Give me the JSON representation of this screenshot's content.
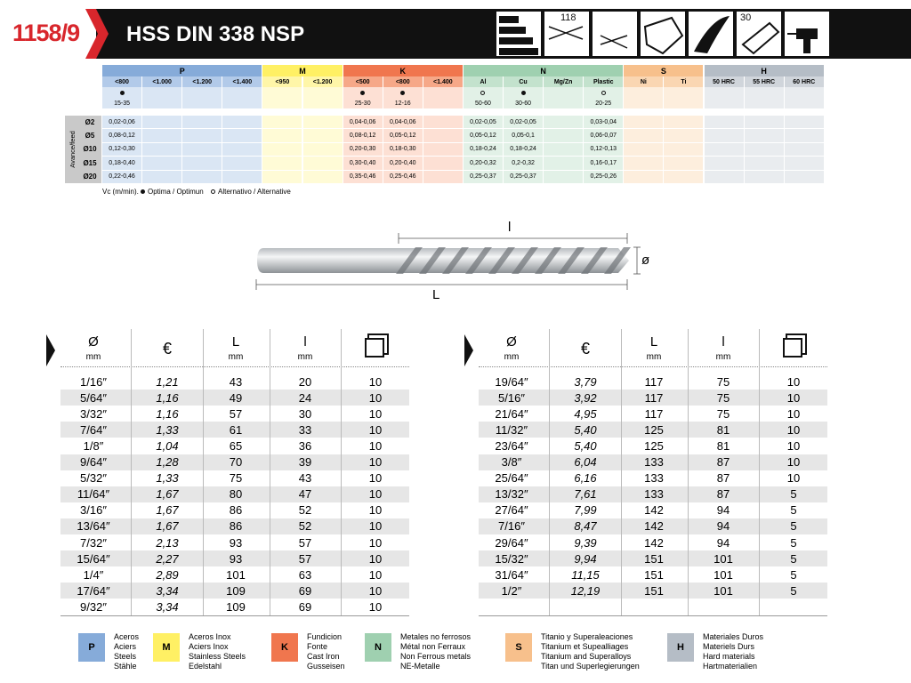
{
  "header": {
    "code": "1158/9",
    "title": "HSS DIN 338 NSP",
    "icon_labels": [
      "118",
      "30"
    ]
  },
  "materials": {
    "groups": [
      {
        "letter": "P",
        "color": "#86abd9",
        "sub": "#b2cae9",
        "light": "#dae6f4",
        "columns": [
          "<800",
          "<1.000",
          "<1.200",
          "<1.400"
        ]
      },
      {
        "letter": "M",
        "color": "#fff064",
        "sub": "#fff6a8",
        "light": "#fffbd6",
        "columns": [
          "<950",
          "<1.200"
        ]
      },
      {
        "letter": "K",
        "color": "#f0764e",
        "sub": "#f6a888",
        "light": "#fde0d4",
        "columns": [
          "<500",
          "<800",
          "<1.400"
        ]
      },
      {
        "letter": "N",
        "color": "#9fd0b0",
        "sub": "#c3e2cd",
        "light": "#e2f1e7",
        "columns": [
          "Al",
          "Cu",
          "Mg/Zn",
          "Plastic"
        ]
      },
      {
        "letter": "S",
        "color": "#f7c08c",
        "sub": "#fad6b2",
        "light": "#fdeedd",
        "columns": [
          "Ni",
          "Ti"
        ]
      },
      {
        "letter": "H",
        "color": "#b5bdc6",
        "sub": "#d0d5db",
        "light": "#e9ecef",
        "columns": [
          "50 HRC",
          "55 HRC",
          "60 HRC"
        ]
      }
    ],
    "speed": [
      {
        "value": "15-35",
        "mark": "optimal"
      },
      null,
      null,
      null,
      null,
      null,
      {
        "value": "25-30",
        "mark": "optimal"
      },
      {
        "value": "12-16",
        "mark": "optimal"
      },
      null,
      {
        "value": "50-60",
        "mark": "alternative"
      },
      {
        "value": "30-60",
        "mark": "optimal"
      },
      null,
      {
        "value": "20-25",
        "mark": "alternative"
      },
      null,
      null,
      null,
      null,
      null
    ],
    "feed": {
      "label": "Avance/feed",
      "rows": [
        {
          "size": "Ø2",
          "values": [
            "0,02-0,06",
            null,
            null,
            null,
            null,
            null,
            "0,04-0,06",
            "0,04-0,06",
            null,
            "0,02-0,05",
            "0,02-0,05",
            null,
            "0,03-0,04",
            null,
            null,
            null,
            null,
            null
          ]
        },
        {
          "size": "Ø5",
          "values": [
            "0,08-0,12",
            null,
            null,
            null,
            null,
            null,
            "0,08-0,12",
            "0,05-0,12",
            null,
            "0,05-0,12",
            "0,05-0,1",
            null,
            "0,06-0,07",
            null,
            null,
            null,
            null,
            null
          ]
        },
        {
          "size": "Ø10",
          "values": [
            "0,12-0,30",
            null,
            null,
            null,
            null,
            null,
            "0,20-0,30",
            "0,18-0,30",
            null,
            "0,18-0,24",
            "0,18-0,24",
            null,
            "0,12-0,13",
            null,
            null,
            null,
            null,
            null
          ]
        },
        {
          "size": "Ø15",
          "values": [
            "0,18-0,40",
            null,
            null,
            null,
            null,
            null,
            "0,30-0,40",
            "0,20-0,40",
            null,
            "0,20-0,32",
            "0,2-0,32",
            null,
            "0,16-0,17",
            null,
            null,
            null,
            null,
            null
          ]
        },
        {
          "size": "Ø20",
          "values": [
            "0,22-0,46",
            null,
            null,
            null,
            null,
            null,
            "0,35-0,46",
            "0,25-0,46",
            null,
            "0,25-0,37",
            "0,25-0,37",
            null,
            "0,25-0,26",
            null,
            null,
            null,
            null,
            null
          ]
        }
      ]
    },
    "legend": {
      "unit": "Vc (m/min).",
      "optimal": "Optima / Optimun",
      "alternative": "Alternativo / Alternative"
    }
  },
  "drawing": {
    "flute_length": "l",
    "diameter": "ø",
    "total_length": "L"
  },
  "products": {
    "headers": [
      {
        "symbol": "Ø",
        "unit": "mm"
      },
      {
        "symbol": "€"
      },
      {
        "symbol": "L",
        "unit": "mm"
      },
      {
        "symbol": "l",
        "unit": "mm"
      }
    ],
    "left": [
      [
        "1/16″",
        "1,21",
        "43",
        "20",
        "10"
      ],
      [
        "5/64″",
        "1,16",
        "49",
        "24",
        "10"
      ],
      [
        "3/32″",
        "1,16",
        "57",
        "30",
        "10"
      ],
      [
        "7/64″",
        "1,33",
        "61",
        "33",
        "10"
      ],
      [
        "1/8″",
        "1,04",
        "65",
        "36",
        "10"
      ],
      [
        "9/64″",
        "1,28",
        "70",
        "39",
        "10"
      ],
      [
        "5/32″",
        "1,33",
        "75",
        "43",
        "10"
      ],
      [
        "11/64″",
        "1,67",
        "80",
        "47",
        "10"
      ],
      [
        "3/16″",
        "1,67",
        "86",
        "52",
        "10"
      ],
      [
        "13/64″",
        "1,67",
        "86",
        "52",
        "10"
      ],
      [
        "7/32″",
        "2,13",
        "93",
        "57",
        "10"
      ],
      [
        "15/64″",
        "2,27",
        "93",
        "57",
        "10"
      ],
      [
        "1/4″",
        "2,89",
        "101",
        "63",
        "10"
      ],
      [
        "17/64″",
        "3,34",
        "109",
        "69",
        "10"
      ],
      [
        "9/32″",
        "3,34",
        "109",
        "69",
        "10"
      ]
    ],
    "right": [
      [
        "19/64″",
        "3,79",
        "117",
        "75",
        "10"
      ],
      [
        "5/16″",
        "3,92",
        "117",
        "75",
        "10"
      ],
      [
        "21/64″",
        "4,95",
        "117",
        "75",
        "10"
      ],
      [
        "11/32″",
        "5,40",
        "125",
        "81",
        "10"
      ],
      [
        "23/64″",
        "5,40",
        "125",
        "81",
        "10"
      ],
      [
        "3/8″",
        "6,04",
        "133",
        "87",
        "10"
      ],
      [
        "25/64″",
        "6,16",
        "133",
        "87",
        "10"
      ],
      [
        "13/32″",
        "7,61",
        "133",
        "87",
        "5"
      ],
      [
        "27/64″",
        "7,99",
        "142",
        "94",
        "5"
      ],
      [
        "7/16″",
        "8,47",
        "142",
        "94",
        "5"
      ],
      [
        "29/64″",
        "9,39",
        "142",
        "94",
        "5"
      ],
      [
        "15/32″",
        "9,94",
        "151",
        "101",
        "5"
      ],
      [
        "31/64″",
        "11,15",
        "151",
        "101",
        "5"
      ],
      [
        "1/2″",
        "12,19",
        "151",
        "101",
        "5"
      ]
    ]
  },
  "material_legend": [
    {
      "letter": "P",
      "lines": [
        "Aceros",
        "Aciers",
        "Steels",
        "Stähle"
      ]
    },
    {
      "letter": "M",
      "lines": [
        "Aceros Inox",
        "Aciers Inox",
        "Stainless Steels",
        "Edelstahl"
      ]
    },
    {
      "letter": "K",
      "lines": [
        "Fundicion",
        "Fonte",
        "Cast Iron",
        "Gusseisen"
      ]
    },
    {
      "letter": "N",
      "lines": [
        "Metales no ferrosos",
        "Métal non Ferraux",
        "Non Ferrous metals",
        "NE-Metalle"
      ]
    },
    {
      "letter": "S",
      "lines": [
        "Titanio y Superaleaciones",
        "Titanium et Supealliages",
        "Titanium and Superalloys",
        "Titan und Superlegierungen"
      ]
    },
    {
      "letter": "H",
      "lines": [
        "Materiales Duros",
        "Materiels Durs",
        "Hard materials",
        "Hartmaterialien"
      ]
    }
  ]
}
